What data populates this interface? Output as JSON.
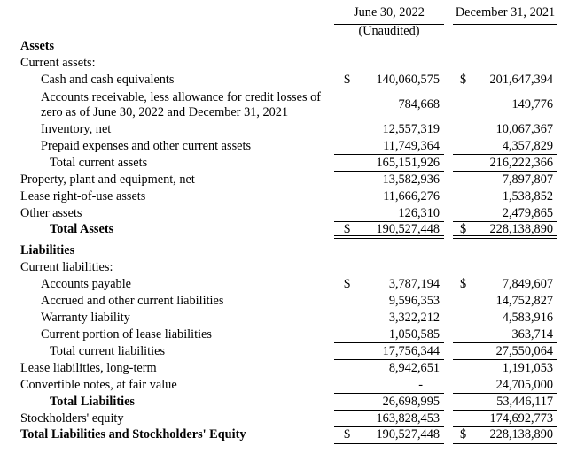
{
  "header": {
    "col1": {
      "label": "June 30, 2022",
      "sublabel": "(Unaudited)"
    },
    "col2": {
      "label": "December 31, 2021",
      "sublabel": ""
    }
  },
  "rows": [
    {
      "label": "Assets",
      "indent": 0,
      "bold": true,
      "v1": "",
      "v2": ""
    },
    {
      "label": "Current assets:",
      "indent": 0,
      "v1": "",
      "v2": ""
    },
    {
      "label": "Cash and cash equivalents",
      "indent": 1,
      "dollar": true,
      "v1": "140,060,575",
      "v2": "201,647,394"
    },
    {
      "label": "Accounts receivable, less allowance for credit losses of zero as of June 30, 2022 and December 31, 2021",
      "indent": 1,
      "tall": true,
      "v1": "784,668",
      "v2": "149,776"
    },
    {
      "label": "Inventory, net",
      "indent": 1,
      "v1": "12,557,319",
      "v2": "10,067,367"
    },
    {
      "label": "Prepaid expenses and other current assets",
      "indent": 1,
      "v1": "11,749,364",
      "v2": "4,357,829",
      "underline": "single"
    },
    {
      "label": "Total current assets",
      "indent": 2,
      "v1": "165,151,926",
      "v2": "216,222,366",
      "underline": "single"
    },
    {
      "label": "Property, plant and equipment, net",
      "indent": 0,
      "v1": "13,582,936",
      "v2": "7,897,807"
    },
    {
      "label": "Lease right-of-use assets",
      "indent": 0,
      "v1": "11,666,276",
      "v2": "1,538,852"
    },
    {
      "label": "Other assets",
      "indent": 0,
      "v1": "126,310",
      "v2": "2,479,865",
      "underline": "single"
    },
    {
      "label": "Total Assets",
      "indent": 2,
      "bold": true,
      "dollar": true,
      "v1": "190,527,448",
      "v2": "228,138,890",
      "underline": "double"
    },
    {
      "label": "Liabilities",
      "indent": 0,
      "bold": true,
      "gap_before": true,
      "v1": "",
      "v2": ""
    },
    {
      "label": "Current liabilities:",
      "indent": 0,
      "v1": "",
      "v2": ""
    },
    {
      "label": "Accounts payable",
      "indent": 1,
      "dollar": true,
      "v1": "3,787,194",
      "v2": "7,849,607"
    },
    {
      "label": "Accrued and other current liabilities",
      "indent": 1,
      "v1": "9,596,353",
      "v2": "14,752,827"
    },
    {
      "label": "Warranty liability",
      "indent": 1,
      "v1": "3,322,212",
      "v2": "4,583,916"
    },
    {
      "label": "Current portion of lease liabilities",
      "indent": 1,
      "v1": "1,050,585",
      "v2": "363,714",
      "underline": "single"
    },
    {
      "label": "Total current liabilities",
      "indent": 2,
      "v1": "17,756,344",
      "v2": "27,550,064",
      "underline": "single"
    },
    {
      "label": "Lease liabilities, long-term",
      "indent": 0,
      "v1": "8,942,651",
      "v2": "1,191,053"
    },
    {
      "label": "Convertible notes, at fair value",
      "indent": 0,
      "v1": "-",
      "v2": "24,705,000",
      "underline": "single"
    },
    {
      "label": "Total Liabilities",
      "indent": 2,
      "bold": true,
      "v1": "26,698,995",
      "v2": "53,446,117",
      "underline": "single"
    },
    {
      "label": "Stockholders' equity",
      "indent": 0,
      "v1": "163,828,453",
      "v2": "174,692,773",
      "underline": "single"
    },
    {
      "label": "Total Liabilities and Stockholders' Equity",
      "indent": 0,
      "bold": true,
      "dollar": true,
      "v1": "190,527,448",
      "v2": "228,138,890",
      "underline": "double"
    }
  ]
}
